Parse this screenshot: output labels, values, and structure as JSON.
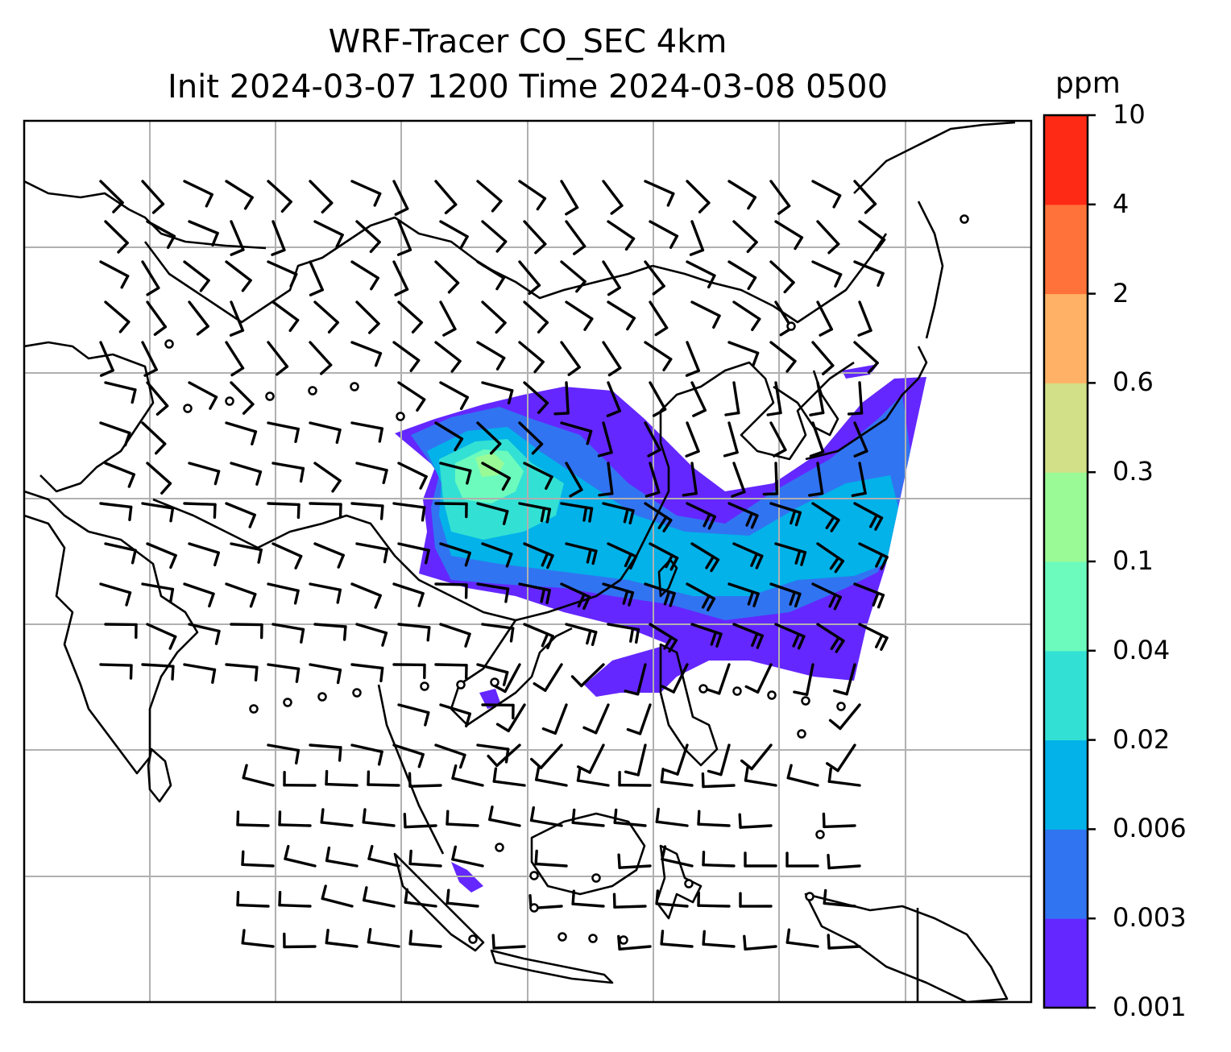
{
  "title": {
    "line1": "WRF-Tracer CO_SEC 4km",
    "line2": "Init 2024-03-07 1200 Time 2024-03-08 0500"
  },
  "colorbar": {
    "units": "ppm",
    "ticks": [
      "0.001",
      "0.003",
      "0.006",
      "0.02",
      "0.04",
      "0.1",
      "0.3",
      "0.6",
      "2",
      "4",
      "10"
    ],
    "colors": [
      "#6427ff",
      "#3174f1",
      "#02b2e9",
      "#33e0d4",
      "#6cfbbd",
      "#9afa96",
      "#d2e088",
      "#ffb266",
      "#ff7239",
      "#ff2a15"
    ]
  },
  "map": {
    "gridlines": true,
    "wind_barbs": true,
    "tracer_plume": "CO_SEC concentration, East Asia outflow toward western Pacific"
  }
}
